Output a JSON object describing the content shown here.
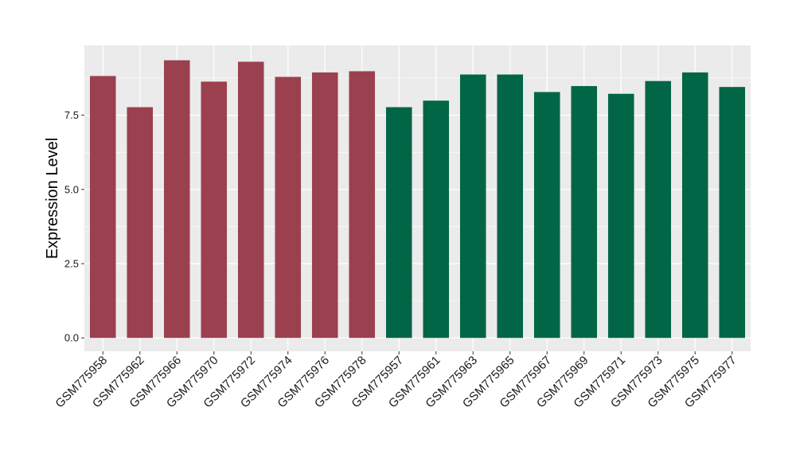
{
  "chart_data": {
    "type": "bar",
    "title": "",
    "xlabel": "",
    "ylabel": "Expression Level",
    "ylim": [
      -0.45,
      9.85
    ],
    "y_ticks": [
      0.0,
      2.5,
      5.0,
      7.5
    ],
    "y_tick_labels": [
      "0.0",
      "2.5",
      "5.0",
      "7.5"
    ],
    "grid": true,
    "legend": "none",
    "colors": {
      "panel_background": "#ebebeb",
      "gridline": "#ffffff",
      "group_1": "#9b404f",
      "group_2": "#006646"
    },
    "categories": [
      "GSM775958",
      "GSM775962",
      "GSM775966",
      "GSM775970",
      "GSM775972",
      "GSM775974",
      "GSM775976",
      "GSM775978",
      "GSM775957",
      "GSM775961",
      "GSM775963",
      "GSM775965",
      "GSM775967",
      "GSM775969",
      "GSM775971",
      "GSM775973",
      "GSM775975",
      "GSM775977"
    ],
    "values": [
      8.82,
      7.77,
      9.35,
      8.63,
      9.3,
      8.79,
      8.94,
      8.98,
      7.77,
      7.99,
      8.87,
      8.87,
      8.28,
      8.48,
      8.22,
      8.65,
      8.94,
      8.45
    ],
    "bar_colors": [
      "#9b404f",
      "#9b404f",
      "#9b404f",
      "#9b404f",
      "#9b404f",
      "#9b404f",
      "#9b404f",
      "#9b404f",
      "#006646",
      "#006646",
      "#006646",
      "#006646",
      "#006646",
      "#006646",
      "#006646",
      "#006646",
      "#006646",
      "#006646"
    ]
  }
}
